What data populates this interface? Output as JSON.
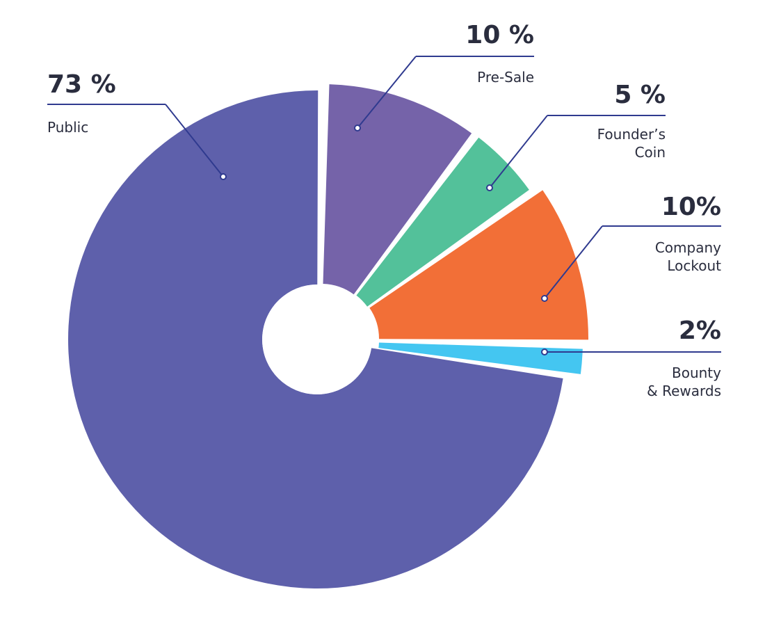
{
  "chart_data": {
    "type": "pie",
    "variant": "exploded donut",
    "slices": [
      {
        "percent_label": "73 %",
        "label": [
          "Public"
        ],
        "value": 73,
        "color": "#5e60ab"
      },
      {
        "percent_label": "10 %",
        "label": [
          "Pre-Sale"
        ],
        "value": 10,
        "color": "#7563a9"
      },
      {
        "percent_label": "5 %",
        "label": [
          "Founder’s",
          "Coin"
        ],
        "value": 5,
        "color": "#53c19a"
      },
      {
        "percent_label": "10%",
        "label": [
          "Company",
          "Lockout"
        ],
        "value": 10,
        "color": "#f26f37"
      },
      {
        "percent_label": "2%",
        "label": [
          "Bounty",
          "& Rewards"
        ],
        "value": 2,
        "color": "#44c6f1"
      }
    ],
    "leader_line_color": "#2f3a8f",
    "legend": "callouts"
  }
}
